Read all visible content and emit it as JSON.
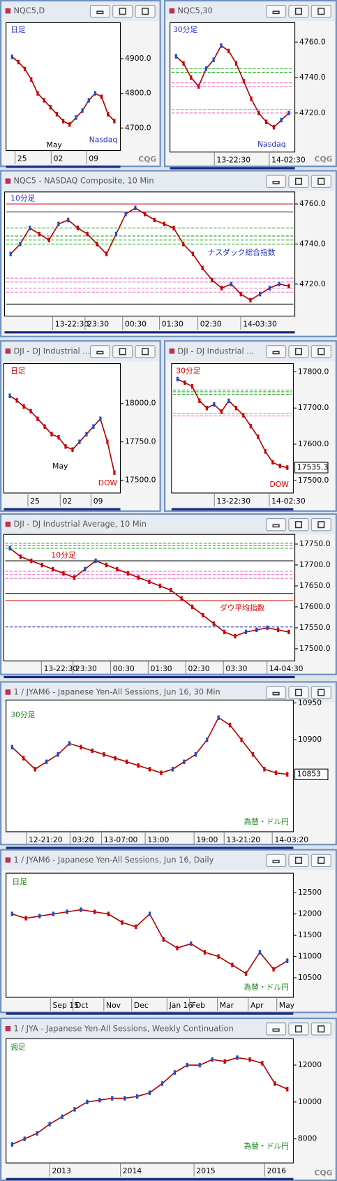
{
  "windows": [
    {
      "title": "NQC5,D",
      "logo": "CQG",
      "chart": {
        "type": "line",
        "color": "#b00000",
        "values": [
          4905,
          4890,
          4870,
          4840,
          4800,
          4780,
          4760,
          4740,
          4720,
          4710,
          4730,
          4750,
          4780,
          4800,
          4790,
          4740,
          4720
        ],
        "ylim": [
          4635,
          5004
        ],
        "yticks": [
          {
            "value": 4900,
            "label": "4900.0"
          },
          {
            "value": 4800,
            "label": "4800.0"
          },
          {
            "value": 4700,
            "label": "4700.0"
          }
        ],
        "xlabels": [
          "25",
          "02",
          "09"
        ],
        "annotations": [
          {
            "text": "日足",
            "color": "#2030c0"
          },
          {
            "text": "May",
            "color": "#000000"
          },
          {
            "text": "Nasdaq",
            "color": "#2030c0"
          }
        ]
      }
    },
    {
      "title": "NQC5,30",
      "logo": "CQG",
      "chart": {
        "type": "line",
        "color": "#b00000",
        "values": [
          4752,
          4748,
          4740,
          4735,
          4745,
          4750,
          4758,
          4755,
          4748,
          4738,
          4728,
          4720,
          4715,
          4712,
          4716,
          4720
        ],
        "ylim": [
          4698,
          4771
        ],
        "yticks": [
          {
            "value": 4760,
            "label": "4760.0"
          },
          {
            "value": 4740,
            "label": "4740.0"
          },
          {
            "value": 4720,
            "label": "4720.0"
          }
        ],
        "levels": [
          {
            "value": 4745,
            "color": "#22aa22"
          },
          {
            "value": 4743,
            "color": "#22aa22"
          },
          {
            "value": 4737,
            "color": "#ee66bb"
          },
          {
            "value": 4735,
            "color": "#ee66bb"
          },
          {
            "value": 4722,
            "color": "#ee66bb"
          },
          {
            "value": 4720,
            "color": "#ee66bb"
          }
        ],
        "xlabels": [
          "13-22:30",
          "14-02:30"
        ],
        "annotations": [
          {
            "text": "30分足",
            "color": "#2030c0"
          },
          {
            "text": "Nasdaq",
            "color": "#2030c0"
          }
        ]
      }
    },
    {
      "title": "NQC5 - NASDAQ Composite, 10 Min",
      "chart": {
        "type": "line",
        "color": "#b00000",
        "values": [
          4735,
          4740,
          4748,
          4745,
          4742,
          4750,
          4752,
          4748,
          4745,
          4740,
          4735,
          4745,
          4755,
          4758,
          4755,
          4752,
          4750,
          4748,
          4740,
          4735,
          4728,
          4722,
          4718,
          4720,
          4715,
          4712,
          4715,
          4718,
          4720,
          4719
        ],
        "ylim": [
          4704,
          4766
        ],
        "yticks": [
          {
            "value": 4760,
            "label": "4760.0"
          },
          {
            "value": 4740,
            "label": "4740.0"
          },
          {
            "value": 4720,
            "label": "4720.0"
          }
        ],
        "levels": [
          {
            "value": 4760,
            "color": "#dd2222"
          },
          {
            "value": 4756,
            "color": "#000000"
          },
          {
            "value": 4748,
            "color": "#22aa22"
          },
          {
            "value": 4744,
            "color": "#22aa22"
          },
          {
            "value": 4742,
            "color": "#22aa22"
          },
          {
            "value": 4740,
            "color": "#22aa22"
          },
          {
            "value": 4723,
            "color": "#ee66bb"
          },
          {
            "value": 4721,
            "color": "#ee66bb"
          },
          {
            "value": 4718,
            "color": "#ee66bb"
          },
          {
            "value": 4716,
            "color": "#ee66bb"
          },
          {
            "value": 4710,
            "color": "#000000"
          }
        ],
        "xlabels": [
          "13-22:30",
          "23:30",
          "00:30",
          "01:30",
          "02:30",
          "14-03:30"
        ],
        "annotations": [
          {
            "text": "10分足",
            "color": "#2030c0"
          },
          {
            "text": "ナスダック総合指数",
            "color": "#2030c0"
          }
        ]
      }
    },
    {
      "title": "DJI - DJ Industrial ...",
      "chart": {
        "type": "line",
        "color": "#b00000",
        "values": [
          18050,
          18020,
          17980,
          17950,
          17900,
          17850,
          17800,
          17780,
          17720,
          17700,
          17750,
          17800,
          17850,
          17900,
          17750,
          17550
        ],
        "ylim": [
          17417,
          18260
        ],
        "yticks": [
          {
            "value": 18000,
            "label": "18000.0"
          },
          {
            "value": 17750,
            "label": "17750.0"
          },
          {
            "value": 17500,
            "label": "17500.0"
          }
        ],
        "xlabels": [
          "25",
          "02",
          "09"
        ],
        "annotations": [
          {
            "text": "日足",
            "color": "#dd0000"
          },
          {
            "text": "May",
            "color": "#000000"
          },
          {
            "text": "DOW",
            "color": "#dd0000"
          }
        ]
      }
    },
    {
      "title": "DJI - DJ Industrial ...",
      "chart": {
        "type": "line",
        "color": "#b00000",
        "values": [
          17780,
          17770,
          17760,
          17720,
          17700,
          17710,
          17690,
          17720,
          17700,
          17680,
          17650,
          17620,
          17580,
          17550,
          17540,
          17535.3
        ],
        "ylim": [
          17465,
          17823
        ],
        "yticks": [
          {
            "value": 17800,
            "label": "17800.0"
          },
          {
            "value": 17700,
            "label": "17700.0"
          },
          {
            "value": 17600,
            "label": "17600.0"
          },
          {
            "value": 17500,
            "label": "17500.0"
          }
        ],
        "last": 17535.3,
        "levels": [
          {
            "value": 17750,
            "color": "#22aa22"
          },
          {
            "value": 17745,
            "color": "#22aa22"
          },
          {
            "value": 17738,
            "color": "#22aa22"
          },
          {
            "value": 17685,
            "color": "#ee66bb"
          },
          {
            "value": 17678,
            "color": "#ee66bb"
          }
        ],
        "xlabels": [
          "13-22:30",
          "14-02:30"
        ],
        "annotations": [
          {
            "text": "30分足",
            "color": "#dd0000"
          },
          {
            "text": "DOW",
            "color": "#dd0000"
          }
        ]
      }
    },
    {
      "title": "DJI - DJ Industrial Average, 10 Min",
      "chart": {
        "type": "line",
        "color": "#b00000",
        "values": [
          17740,
          17720,
          17710,
          17700,
          17690,
          17680,
          17670,
          17690,
          17710,
          17700,
          17690,
          17680,
          17670,
          17660,
          17650,
          17640,
          17620,
          17600,
          17580,
          17560,
          17540,
          17530,
          17540,
          17545,
          17550,
          17545,
          17540
        ],
        "ylim": [
          17471,
          17773
        ],
        "yticks": [
          {
            "value": 17750,
            "label": "17750.0"
          },
          {
            "value": 17700,
            "label": "17700.0"
          },
          {
            "value": 17650,
            "label": "17650.0"
          },
          {
            "value": 17600,
            "label": "17600.0"
          },
          {
            "value": 17550,
            "label": "17550.0"
          },
          {
            "value": 17500,
            "label": "17500.0"
          }
        ],
        "levels": [
          {
            "value": 17752,
            "color": "#22aa22"
          },
          {
            "value": 17746,
            "color": "#22aa22"
          },
          {
            "value": 17740,
            "color": "#22aa22"
          },
          {
            "value": 17710,
            "color": "#000000"
          },
          {
            "value": 17685,
            "color": "#ee66bb"
          },
          {
            "value": 17677,
            "color": "#ee66bb"
          },
          {
            "value": 17668,
            "color": "#ee66bb"
          },
          {
            "value": 17632,
            "color": "#000000"
          },
          {
            "value": 17615,
            "color": "#dd2222"
          },
          {
            "value": 17552,
            "color": "#2030c0"
          }
        ],
        "xlabels": [
          "13-22:30",
          "23:30",
          "00:30",
          "01:30",
          "02:30",
          "03:30",
          "14-04:30"
        ],
        "annotations": [
          {
            "text": "10分足",
            "color": "#dd0000"
          },
          {
            "text": "ダウ平均指数",
            "color": "#dd0000"
          }
        ]
      }
    },
    {
      "title": "1 / JYAM6 - Japanese Yen-All Sessions, Jun 16, 30 Min",
      "chart": {
        "type": "line",
        "color": "#b00000",
        "values": [
          10890,
          10875,
          10860,
          10870,
          10880,
          10895,
          10890,
          10885,
          10880,
          10875,
          10870,
          10865,
          10860,
          10855,
          10860,
          10870,
          10880,
          10900,
          10930,
          10920,
          10900,
          10880,
          10860,
          10855,
          10853
        ],
        "ylim": [
          10775,
          10954
        ],
        "yticks": [
          10950,
          10900
        ],
        "last": 10853,
        "xlabels": [
          "12-21:20",
          "03:20",
          "13-07:00",
          "13:00",
          "19:00",
          "13-21:20",
          "14-03:20"
        ],
        "annotations": [
          {
            "text": "30分足",
            "color": "#208020"
          },
          {
            "text": "為替・ドル円",
            "color": "#208020"
          }
        ]
      }
    },
    {
      "title": "1 / JYAM6 - Japanese Yen-All Sessions, Jun 16, Daily",
      "chart": {
        "type": "line",
        "color": "#b00000",
        "values": [
          12000,
          11900,
          11950,
          12000,
          12050,
          12100,
          12050,
          12000,
          11800,
          11700,
          12000,
          11400,
          11200,
          11300,
          11100,
          11000,
          10800,
          10600,
          11100,
          10700,
          10900
        ],
        "ylim": [
          10040,
          12960
        ],
        "yticks": [
          12500,
          12000,
          11500,
          11000,
          10500
        ],
        "xlabels": [
          "Sep 15",
          "Oct",
          "Nov",
          "Dec",
          "Jan 16",
          "Feb",
          "Mar",
          "Apr",
          "May"
        ],
        "annotations": [
          {
            "text": "日足",
            "color": "#208020"
          },
          {
            "text": "為替・ドル円",
            "color": "#208020"
          }
        ]
      }
    },
    {
      "title": "1 / JYA - Japanese Yen-All Sessions, Weekly Continuation",
      "logo": "CQG",
      "chart": {
        "type": "line",
        "color": "#b00000",
        "values": [
          7700,
          8000,
          8300,
          8800,
          9200,
          9600,
          10000,
          10100,
          10200,
          10200,
          10300,
          10500,
          11000,
          11600,
          12000,
          12000,
          12300,
          12200,
          12400,
          12300,
          12100,
          11000,
          10700
        ],
        "ylim": [
          6694,
          13430
        ],
        "yticks": [
          12000,
          10000,
          8000
        ],
        "xlabels": [
          "2013",
          "2014",
          "2015",
          "2016"
        ],
        "annotations": [
          {
            "text": "週足",
            "color": "#208020"
          },
          {
            "text": "為替・ドル円",
            "color": "#208020"
          }
        ]
      }
    }
  ]
}
